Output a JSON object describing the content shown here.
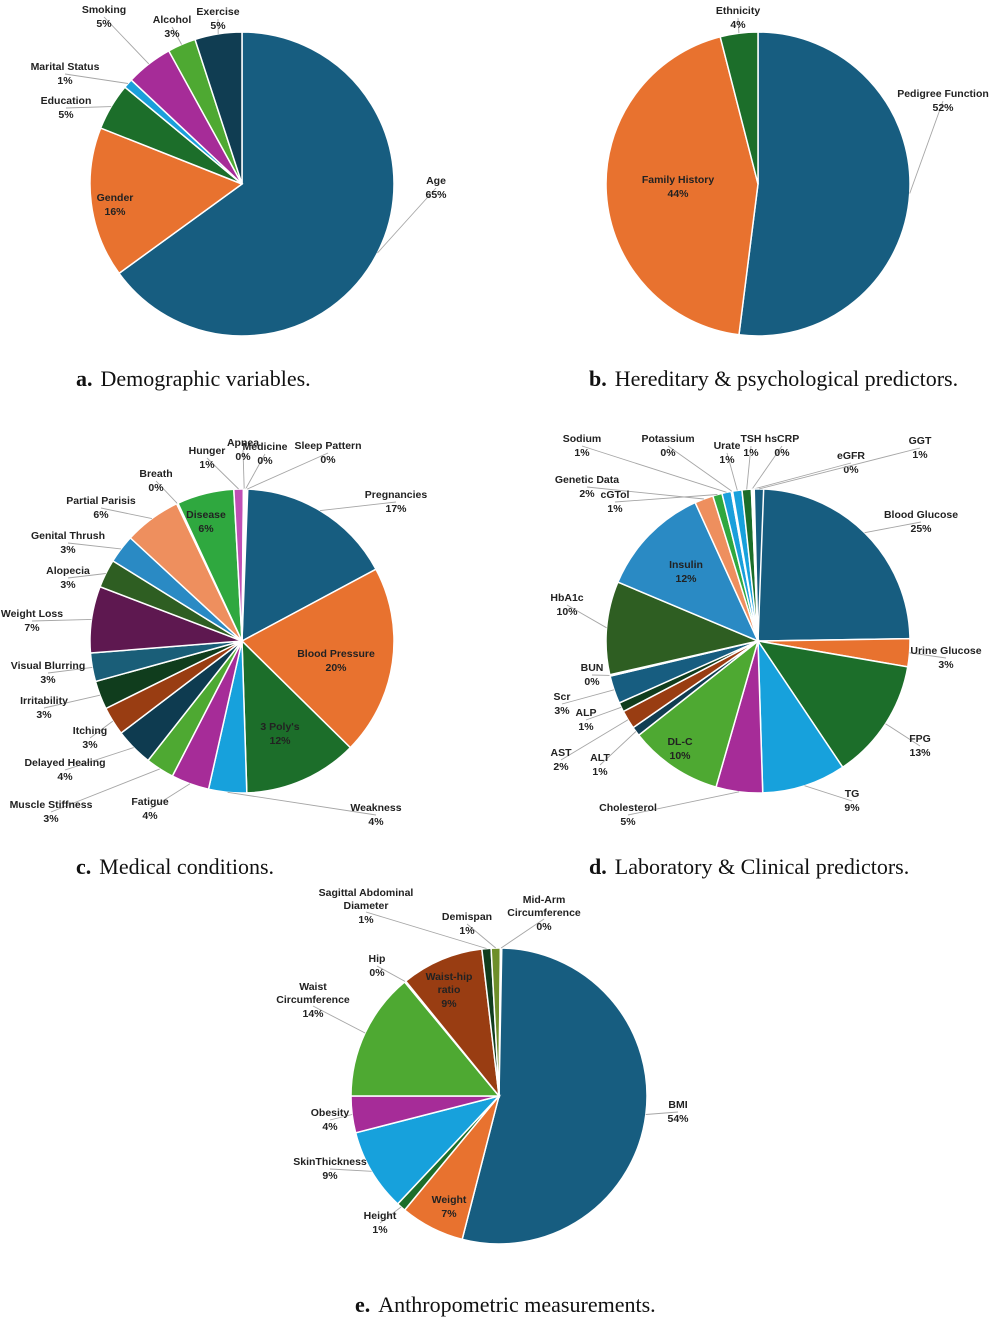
{
  "chart_data": [
    {
      "type": "pie",
      "caption_letter": "a.",
      "caption_text": "Demographic variables.",
      "slices": [
        {
          "label": "Age",
          "value": 65,
          "pct": "65%",
          "color": "#175d80"
        },
        {
          "label": "Gender",
          "value": 16,
          "pct": "16%",
          "color": "#e8722f"
        },
        {
          "label": "Education",
          "value": 5,
          "pct": "5%",
          "color": "#1c6e2a"
        },
        {
          "label": "Marital Status",
          "value": 1,
          "pct": "1%",
          "color": "#1a9fdb"
        },
        {
          "label": "Smoking",
          "value": 5,
          "pct": "5%",
          "color": "#a62c98"
        },
        {
          "label": "Alcohol",
          "value": 3,
          "pct": "3%",
          "color": "#4ea932"
        },
        {
          "label": "Exercise",
          "value": 5,
          "pct": "5%",
          "color": "#103d52"
        }
      ]
    },
    {
      "type": "pie",
      "caption_letter": "b.",
      "caption_text": "Hereditary & psychological predictors.",
      "slices": [
        {
          "label": "Pedigree Function",
          "value": 52,
          "pct": "52%",
          "color": "#175d80"
        },
        {
          "label": "Family History",
          "value": 44,
          "pct": "44%",
          "color": "#e8722f"
        },
        {
          "label": "Ethnicity",
          "value": 4,
          "pct": "4%",
          "color": "#1c6e2a"
        }
      ]
    },
    {
      "type": "pie",
      "caption_letter": "c.",
      "caption_text": "Medical conditions.",
      "slices": [
        {
          "label": "Pregnancies",
          "value": 17,
          "pct": "17%",
          "color": "#175d80"
        },
        {
          "label": "Blood Pressure",
          "value": 20,
          "pct": "20%",
          "color": "#e8722f"
        },
        {
          "label": "3 Poly's",
          "value": 12,
          "pct": "12%",
          "color": "#1c6e2a"
        },
        {
          "label": "Weakness",
          "value": 4,
          "pct": "4%",
          "color": "#17a1dc"
        },
        {
          "label": "Fatigue",
          "value": 4,
          "pct": "4%",
          "color": "#a62c98"
        },
        {
          "label": "Muscle Stiffness",
          "value": 3,
          "pct": "3%",
          "color": "#4ea932"
        },
        {
          "label": "Delayed Healing",
          "value": 4,
          "pct": "4%",
          "color": "#0e3b50"
        },
        {
          "label": "Itching",
          "value": 3,
          "pct": "3%",
          "color": "#993d12"
        },
        {
          "label": "Irritability",
          "value": 3,
          "pct": "3%",
          "color": "#103d1d"
        },
        {
          "label": "Visual Blurring",
          "value": 3,
          "pct": "3%",
          "color": "#1a5e78"
        },
        {
          "label": "Weight Loss",
          "value": 7,
          "pct": "7%",
          "color": "#5e1850"
        },
        {
          "label": "Alopecia",
          "value": 3,
          "pct": "3%",
          "color": "#2e5e22"
        },
        {
          "label": "Genital Thrush",
          "value": 3,
          "pct": "3%",
          "color": "#2a8ac4"
        },
        {
          "label": "Partial Parisis",
          "value": 6,
          "pct": "6%",
          "color": "#ee8f5e"
        },
        {
          "label": "Breath",
          "value": 0,
          "pct": "0%",
          "color": "#1c6e2a"
        },
        {
          "label": "Disease",
          "value": 6,
          "pct": "6%",
          "color": "#2fa83f"
        },
        {
          "label": "Hunger",
          "value": 1,
          "pct": "1%",
          "color": "#c04fb5"
        },
        {
          "label": "Apnea",
          "value": 0,
          "pct": "0%",
          "color": "#175d80"
        },
        {
          "label": "Medicine",
          "value": 0,
          "pct": "0%",
          "color": "#e8722f"
        },
        {
          "label": "Sleep Pattern",
          "value": 0,
          "pct": "0%",
          "color": "#4ea932"
        }
      ]
    },
    {
      "type": "pie",
      "caption_letter": "d.",
      "caption_text": "Laboratory & Clinical predictors.",
      "slices": [
        {
          "label": "Blood Glucose",
          "value": 25,
          "pct": "25%",
          "color": "#175d80"
        },
        {
          "label": "Urine Glucose",
          "value": 3,
          "pct": "3%",
          "color": "#e8722f"
        },
        {
          "label": "FPG",
          "value": 13,
          "pct": "13%",
          "color": "#1c6e2a"
        },
        {
          "label": "TG",
          "value": 9,
          "pct": "9%",
          "color": "#17a1dc"
        },
        {
          "label": "Cholesterol",
          "value": 5,
          "pct": "5%",
          "color": "#a62c98"
        },
        {
          "label": "DL-C",
          "value": 10,
          "pct": "10%",
          "color": "#4ea932"
        },
        {
          "label": "ALT",
          "value": 1,
          "pct": "1%",
          "color": "#103d52"
        },
        {
          "label": "AST",
          "value": 2,
          "pct": "2%",
          "color": "#993d12"
        },
        {
          "label": "ALP",
          "value": 1,
          "pct": "1%",
          "color": "#103d1d"
        },
        {
          "label": "Scr",
          "value": 3,
          "pct": "3%",
          "color": "#175d80"
        },
        {
          "label": "BUN",
          "value": 0,
          "pct": "0%",
          "color": "#4a1840"
        },
        {
          "label": "HbA1c",
          "value": 10,
          "pct": "10%",
          "color": "#2e5e22"
        },
        {
          "label": "Insulin",
          "value": 12,
          "pct": "12%",
          "color": "#2a8ac4"
        },
        {
          "label": "Genetic Data",
          "value": 2,
          "pct": "2%",
          "color": "#ee8f5e"
        },
        {
          "label": "cGTol",
          "value": 1,
          "pct": "1%",
          "color": "#2fa83f"
        },
        {
          "label": "Sodium",
          "value": 1,
          "pct": "1%",
          "color": "#1a9fdb"
        },
        {
          "label": "Potassium",
          "value": 0,
          "pct": "0%",
          "color": "#e8722f"
        },
        {
          "label": "Urate",
          "value": 1,
          "pct": "1%",
          "color": "#17a1dc"
        },
        {
          "label": "TSH",
          "value": 1,
          "pct": "1%",
          "color": "#1c6e2a"
        },
        {
          "label": "hsCRP",
          "value": 0,
          "pct": "0%",
          "color": "#4ea932"
        },
        {
          "label": "eGFR",
          "value": 0,
          "pct": "0%",
          "color": "#a62c98"
        },
        {
          "label": "GGT",
          "value": 1,
          "pct": "1%",
          "color": "#175d80"
        }
      ]
    },
    {
      "type": "pie",
      "caption_letter": "e.",
      "caption_text": "Anthropometric measurements.",
      "slices": [
        {
          "label": "BMI",
          "value": 54,
          "pct": "54%",
          "color": "#175d80"
        },
        {
          "label": "Weight",
          "value": 7,
          "pct": "7%",
          "color": "#e8722f"
        },
        {
          "label": "Height",
          "value": 1,
          "pct": "1%",
          "color": "#1c6e2a"
        },
        {
          "label": "SkinThickness",
          "value": 9,
          "pct": "9%",
          "color": "#17a1dc"
        },
        {
          "label": "Obesity",
          "value": 4,
          "pct": "4%",
          "color": "#a62c98"
        },
        {
          "label": "Waist Circumference",
          "value": 14,
          "pct": "14%",
          "color": "#4ea932"
        },
        {
          "label": "Hip",
          "value": 0,
          "pct": "0%",
          "color": "#103d52"
        },
        {
          "label": "Waist-hip ratio",
          "value": 9,
          "pct": "9%",
          "color": "#993d12"
        },
        {
          "label": "Sagittal Abdominal Diameter",
          "value": 1,
          "pct": "1%",
          "color": "#103d1d"
        },
        {
          "label": "Demispan",
          "value": 1,
          "pct": "1%",
          "color": "#6e8f2a"
        },
        {
          "label": "Mid-Arm Circumference",
          "value": 0,
          "pct": "0%",
          "color": "#175d80"
        }
      ]
    }
  ]
}
